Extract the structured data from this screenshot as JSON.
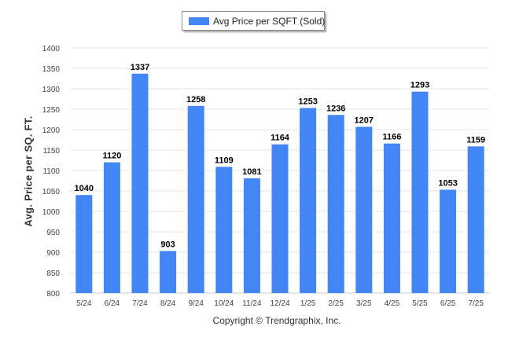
{
  "colors": {
    "bar": "#4285f4",
    "grid": "#e6e6e6",
    "axis_text": "#444444",
    "label_text": "#000000"
  },
  "chart_data": {
    "type": "bar",
    "title": "",
    "legend": {
      "label": "Avg Price per SQFT (Sold)",
      "placement": "top-center"
    },
    "ylabel": "Avg. Price per SQ. FT.",
    "xlabel": "Copyright © Trendgraphix, Inc.",
    "ylim": [
      800,
      1400
    ],
    "ytick_step": 50,
    "yticks": [
      "800",
      "850",
      "900",
      "950",
      "1000",
      "1050",
      "1100",
      "1150",
      "1200",
      "1250",
      "1300",
      "1350",
      "1400"
    ],
    "grid": true,
    "categories": [
      "5/24",
      "6/24",
      "7/24",
      "8/24",
      "9/24",
      "10/24",
      "11/24",
      "12/24",
      "1/25",
      "2/25",
      "3/25",
      "4/25",
      "5/25",
      "6/25",
      "7/25"
    ],
    "series": [
      {
        "name": "Avg Price per SQFT (Sold)",
        "values": [
          1040,
          1120,
          1337,
          903,
          1258,
          1109,
          1081,
          1164,
          1253,
          1236,
          1207,
          1166,
          1293,
          1053,
          1159
        ]
      }
    ]
  }
}
